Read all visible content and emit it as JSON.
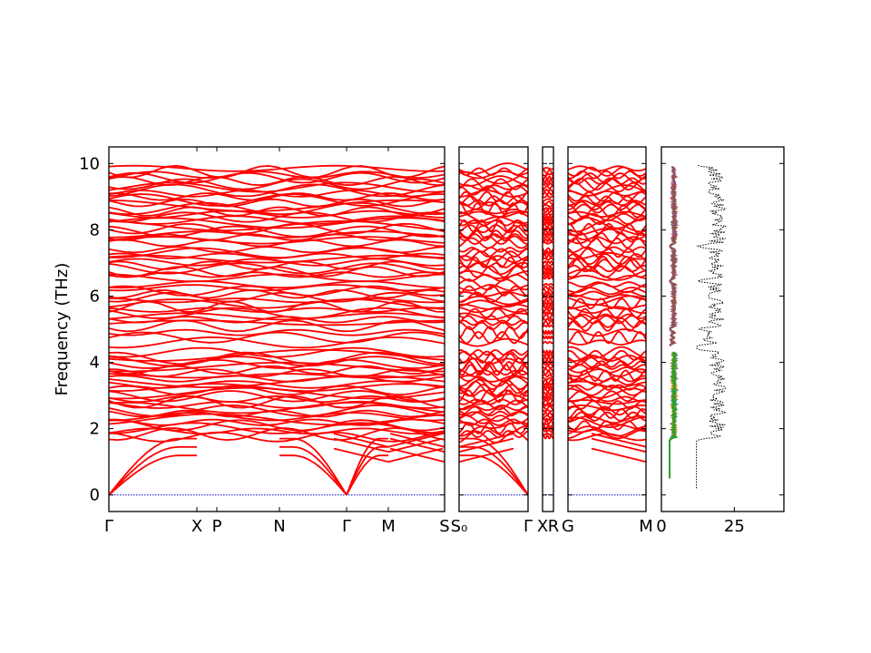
{
  "chart_data": {
    "type": "line",
    "ylabel": "Frequency (THz)",
    "ylim": [
      -0.5,
      10.5
    ],
    "yticks": [
      0,
      2,
      4,
      6,
      8,
      10
    ],
    "colors": {
      "band": "#ff0000",
      "zero_line": "#0000cc",
      "dos_total": "#000000"
    },
    "panels": [
      {
        "name": "panel-1",
        "xticks": [
          "Γ",
          "X",
          "P",
          "N",
          "Γ",
          "M",
          "S"
        ]
      },
      {
        "name": "panel-2",
        "xticks": [
          "S₀",
          "Γ"
        ]
      },
      {
        "name": "panel-3",
        "xticks": [
          "X",
          "R"
        ]
      },
      {
        "name": "panel-4",
        "xticks": [
          "G",
          "M"
        ]
      }
    ],
    "dos": {
      "xticks": [
        0,
        25
      ],
      "xlim": [
        0,
        42
      ],
      "series": [
        {
          "color": "#1f77b4",
          "range": [
            0.5,
            4.3
          ]
        },
        {
          "color": "#ff7f0e",
          "range": [
            0.5,
            4.3
          ]
        },
        {
          "color": "#2ca02c",
          "range": [
            0.5,
            4.3
          ]
        },
        {
          "color": "#d62728",
          "range": [
            4.5,
            9.9
          ]
        },
        {
          "color": "#9467bd",
          "range": [
            4.5,
            9.9
          ]
        },
        {
          "color": "#8c564b",
          "range": [
            4.5,
            9.9
          ]
        }
      ]
    },
    "acoustic_end_frequency": 1.7,
    "optical_band_groups": [
      [
        1.75,
        4.3,
        30
      ],
      [
        4.6,
        4.9,
        3
      ],
      [
        5.1,
        6.35,
        14
      ],
      [
        6.55,
        7.4,
        10
      ],
      [
        7.6,
        8.9,
        16
      ],
      [
        9.0,
        9.85,
        10
      ]
    ]
  }
}
